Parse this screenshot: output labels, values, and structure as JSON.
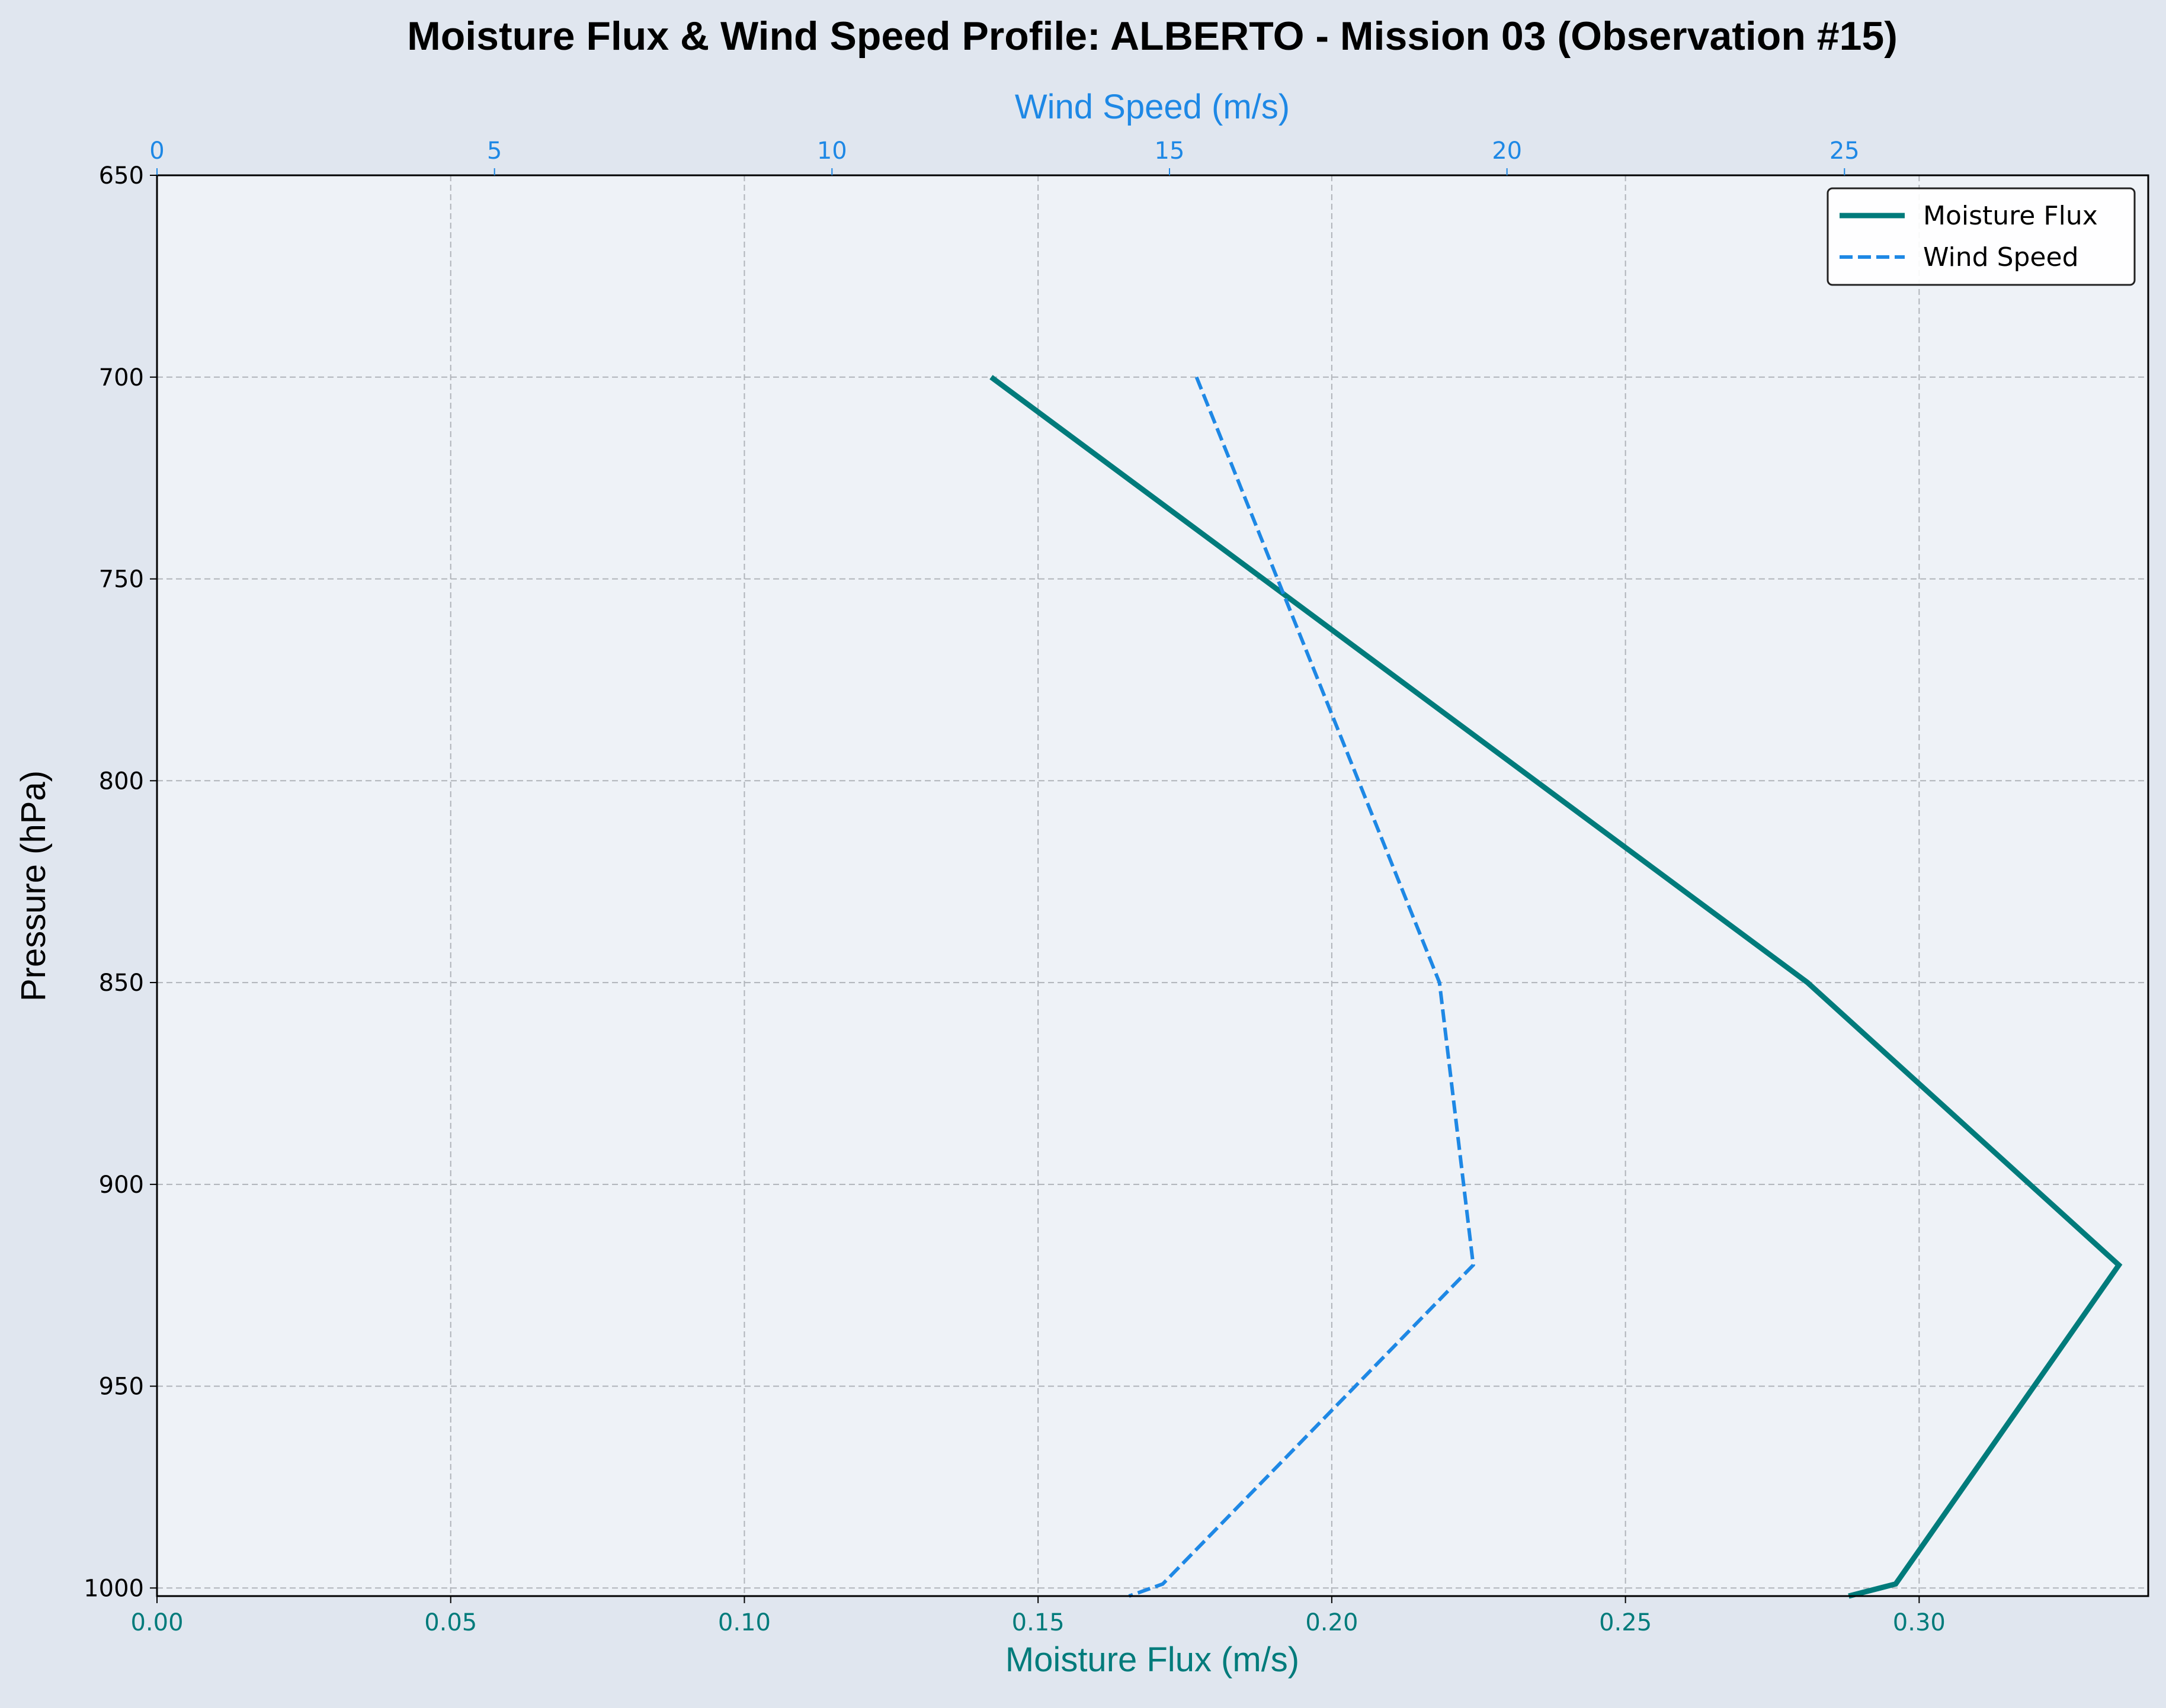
{
  "chart_data": {
    "type": "line",
    "title": "Moisture Flux & Wind Speed Profile: ALBERTO - Mission 03 (Observation #15)",
    "xlabel_bottom": "Moisture Flux (m/s)",
    "xlabel_top": "Wind Speed (m/s)",
    "ylabel": "Pressure (hPa)",
    "y_inverted": true,
    "ylim": [
      650,
      1002
    ],
    "xlim_bottom": [
      0.0,
      0.339
    ],
    "xlim_top": [
      0,
      29.5
    ],
    "x_ticks_bottom": [
      "0.00",
      "0.05",
      "0.10",
      "0.15",
      "0.20",
      "0.25",
      "0.30"
    ],
    "x_ticks_top": [
      "0",
      "5",
      "10",
      "15",
      "20",
      "25"
    ],
    "y_ticks": [
      "650",
      "700",
      "750",
      "800",
      "850",
      "900",
      "950",
      "1000"
    ],
    "grid": true,
    "legend_position": "top-right",
    "series": [
      {
        "name": "Moisture Flux",
        "axis": "bottom",
        "color": "#007b7b",
        "style": "solid",
        "points": [
          [
            0.142,
            700
          ],
          [
            0.281,
            850
          ],
          [
            0.334,
            920
          ],
          [
            0.296,
            999
          ],
          [
            0.288,
            1002
          ]
        ]
      },
      {
        "name": "Wind Speed",
        "axis": "top",
        "color": "#1e88e5",
        "style": "dashed",
        "points": [
          [
            15.4,
            700
          ],
          [
            19.0,
            850
          ],
          [
            19.5,
            920
          ],
          [
            14.9,
            999
          ],
          [
            14.4,
            1002
          ]
        ]
      }
    ],
    "colors": {
      "background": "#e0e6ef",
      "plot_background": "#eef2f7",
      "grid": "#b0b4ba",
      "bottom_axis": "#007b7b",
      "top_axis": "#1e88e5",
      "text": "#000000"
    }
  }
}
